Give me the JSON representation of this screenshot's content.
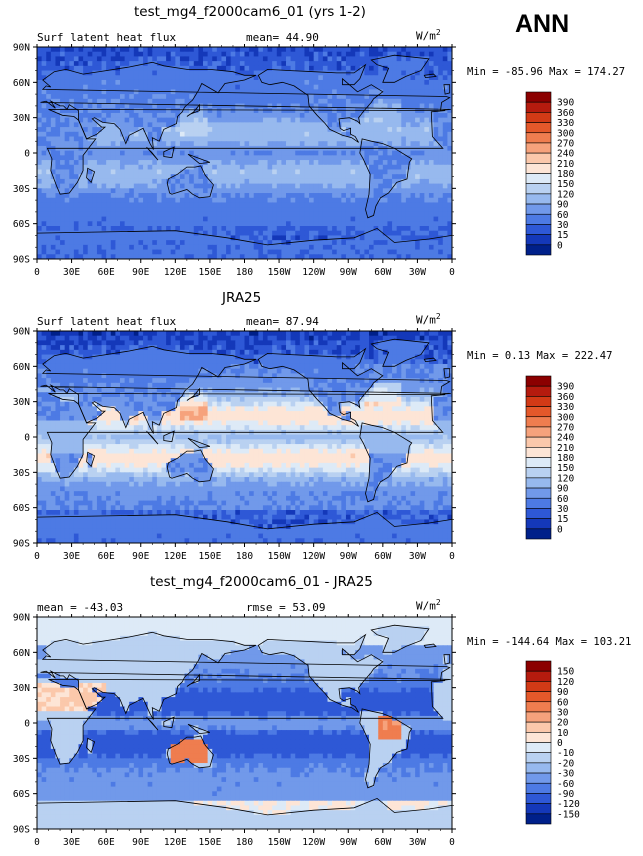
{
  "season": "ANN",
  "chart_data": [
    {
      "type": "heatmap",
      "title": "test_mg4_f2000cam6_01 (yrs 1-2)",
      "variable": "Surf latent heat flux",
      "stat_text": "mean=  44.90",
      "units_text": "W/m",
      "units_sup": "2",
      "minmax_text": "Min = -85.96 Max = 174.27",
      "min": -85.96,
      "max": 174.27,
      "mean": 44.9,
      "xticks": [
        "0",
        "30E",
        "60E",
        "90E",
        "120E",
        "150E",
        "180",
        "150W",
        "120W",
        "90W",
        "60W",
        "30W",
        "0"
      ],
      "yticks": [
        "90N",
        "60N",
        "30N",
        "0",
        "30S",
        "60S",
        "90S"
      ],
      "colorbar_levels": [
        "390",
        "360",
        "330",
        "300",
        "270",
        "240",
        "210",
        "180",
        "150",
        "120",
        "90",
        "60",
        "30",
        "15",
        "0"
      ],
      "colorbar_colors": [
        "#8b0000",
        "#b51b0e",
        "#d23a16",
        "#e4582a",
        "#ef7d4f",
        "#f6a27c",
        "#fbc8ab",
        "#fde5d6",
        "#ddeaf7",
        "#b9d1f1",
        "#97b9ee",
        "#7199ea",
        "#4d7ae4",
        "#2e58d6",
        "#1438b9",
        "#00208a"
      ],
      "field": "sim"
    },
    {
      "type": "heatmap",
      "title": "JRA25",
      "variable": "Surf latent heat flux",
      "stat_text": "mean=  87.94",
      "units_text": "W/m",
      "units_sup": "2",
      "minmax_text": "Min =   0.13 Max = 222.47",
      "min": 0.13,
      "max": 222.47,
      "mean": 87.94,
      "xticks": [
        "0",
        "30E",
        "60E",
        "90E",
        "120E",
        "150E",
        "180",
        "150W",
        "120W",
        "90W",
        "60W",
        "30W",
        "0"
      ],
      "yticks": [
        "90N",
        "60N",
        "30N",
        "0",
        "30S",
        "60S",
        "90S"
      ],
      "colorbar_levels": [
        "390",
        "360",
        "330",
        "300",
        "270",
        "240",
        "210",
        "180",
        "150",
        "120",
        "90",
        "60",
        "30",
        "15",
        "0"
      ],
      "colorbar_colors": [
        "#8b0000",
        "#b51b0e",
        "#d23a16",
        "#e4582a",
        "#ef7d4f",
        "#f6a27c",
        "#fbc8ab",
        "#fde5d6",
        "#ddeaf7",
        "#b9d1f1",
        "#97b9ee",
        "#7199ea",
        "#4d7ae4",
        "#2e58d6",
        "#1438b9",
        "#00208a"
      ],
      "field": "obs"
    },
    {
      "type": "heatmap",
      "title": "test_mg4_f2000cam6_01 - JRA25",
      "stat_text": "mean = -43.03",
      "rmse_text": "rmse =  53.09",
      "units_text": "W/m",
      "units_sup": "2",
      "minmax_text": "Min = -144.64 Max = 103.21",
      "min": -144.64,
      "max": 103.21,
      "mean": -43.03,
      "rmse": 53.09,
      "xticks": [
        "0",
        "30E",
        "60E",
        "90E",
        "120E",
        "150E",
        "180",
        "150W",
        "120W",
        "90W",
        "60W",
        "30W",
        "0"
      ],
      "yticks": [
        "90N",
        "60N",
        "30N",
        "0",
        "30S",
        "60S",
        "90S"
      ],
      "colorbar_levels": [
        "150",
        "120",
        "90",
        "60",
        "30",
        "20",
        "10",
        "0",
        "-10",
        "-20",
        "-30",
        "-60",
        "-90",
        "-120",
        "-150"
      ],
      "colorbar_colors": [
        "#8b0000",
        "#b51b0e",
        "#d23a16",
        "#e4582a",
        "#ef7d4f",
        "#f6a27c",
        "#fbc8ab",
        "#fde5d6",
        "#ddeaf7",
        "#b9d1f1",
        "#97b9ee",
        "#7199ea",
        "#4d7ae4",
        "#2e58d6",
        "#1438b9",
        "#00208a"
      ],
      "field": "diff"
    }
  ]
}
